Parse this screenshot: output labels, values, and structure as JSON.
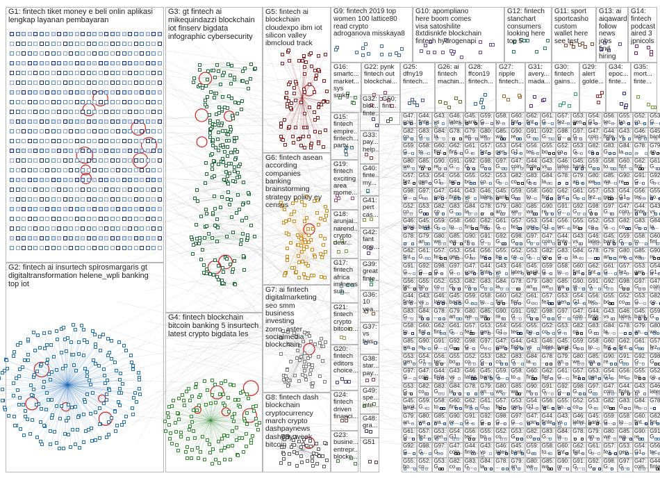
{
  "groups": [
    {
      "id": "G1",
      "text": "G1: fintech tiket money e beli onlin aplikasi\nlengkap layanan pembayaran",
      "color": "#2f3a7a"
    },
    {
      "id": "G2",
      "text": "G2: fintech ai insurtech spirosmargaris gt\ndigitaltransformation helene_wpli banking\ntop iot",
      "color": "#1f6fb5"
    },
    {
      "id": "G3",
      "text": "G3: gt fintech ai\nmikequindazzi blockchain\niot finserv bigdata\ninfographic cybersecurity",
      "color": "#1f6b3a"
    },
    {
      "id": "G4",
      "text": "G4: fintech blockchain\nbitcoin banking 5 insurtech\nlatest crypto bigdata les",
      "color": "#2e8b2e"
    },
    {
      "id": "G5",
      "text": "G5: fintech ai\nblockchain\ncloudexpo ibm iot\nsilicon valley\nibmcloud track",
      "color": "#8b1a1a"
    },
    {
      "id": "G6",
      "text": "G6: fintech asean\naccording\ncompanies\nbanking\nbrainstorming\nstrategy policy ey\ncensus",
      "color": "#d08a1a"
    },
    {
      "id": "G7",
      "text": "G7: ai fintech\ndigitalmarketing\nseo smm\nbusiness\ninvesting\nzorro_aster\nsocialmedia\nblockchain",
      "color": "#7a7a7a"
    },
    {
      "id": "G8",
      "text": "G8: fintech dash\nblockchain\ncryptocurrency\nmarch crypto\ndashpaynews\ndashpay week\nbitcoin",
      "color": "#5a5a5a"
    },
    {
      "id": "G9",
      "text": "G9: fintech 2019 top\nwomen 100 lattice80\nread crypto\nadroganova misskaya8",
      "color": "#3a6aa0"
    },
    {
      "id": "G10",
      "text": "G10: apompliano\nhere boom comes\nvisa satoshilite\n8xtdisnkfe blockchain\nfintech hydrogenapi",
      "color": "#6a4aa0"
    },
    {
      "id": "G12",
      "text": "G12: fintech\nstanchart\nconsumers\nlooking here\ntop 5",
      "color": "#2a7a6a"
    },
    {
      "id": "G11",
      "text": "G11: sport\nsportcasho\ncustom\nwallet here\nsee test",
      "color": "#8a4a2a"
    },
    {
      "id": "G13",
      "text": "G13: ai\naiqawards\nfollow\nnews jobs\nfind hiring",
      "color": "#4a4a9a"
    },
    {
      "id": "G14",
      "text": "G14:\nfintech\npodcast\naired 3\njpnicols",
      "color": "#7a2a6a"
    },
    {
      "id": "G16",
      "text": "G16:\nsmartc...\nmarket...\nsys\nsmkg...",
      "color": "#3a8a3a"
    },
    {
      "id": "G22",
      "text": "G22: pynk\nfintech out\nblockchai...",
      "color": "#a03a6a"
    },
    {
      "id": "G25",
      "text": "G25:\ndfny19\nfintech...",
      "color": "#3a5aa0"
    },
    {
      "id": "G26",
      "text": "G26: ai\nfintech\nmachin...",
      "color": "#6a6a2a"
    },
    {
      "id": "G28",
      "text": "G28:\nffcon19\nfintech...",
      "color": "#2a6aa0"
    },
    {
      "id": "G27",
      "text": "G27:\nripple\nfintech...",
      "color": "#a06a2a"
    },
    {
      "id": "G31",
      "text": "G31:\navery...\nmada...",
      "color": "#5a2aa0"
    },
    {
      "id": "G30",
      "text": "G30:\nfintech\ngains...",
      "color": "#2aa06a"
    },
    {
      "id": "G29",
      "text": "G29:\nalert\ngolde...",
      "color": "#a02a2a"
    },
    {
      "id": "G34",
      "text": "G34:\nepoc...\nfinte...",
      "color": "#2a2aa0"
    },
    {
      "id": "G35",
      "text": "G35:\nmort...\nfinte...",
      "color": "#6aa02a"
    },
    {
      "id": "G15",
      "text": "G15:\nfintech\nempire...\nfintech...\nparty...",
      "color": "#4a7a9a"
    },
    {
      "id": "G19",
      "text": "G19:\nfintech\nexciting\narea\nmome...",
      "color": "#9a4a7a"
    },
    {
      "id": "G18",
      "text": "G18:\narunjai...\nnarend...\ncrypto\ndear...",
      "color": "#7a9a4a"
    },
    {
      "id": "G17",
      "text": "G17:\nfintech\nafrica\nimfnews\nsub...",
      "color": "#4a9a9a"
    },
    {
      "id": "G21",
      "text": "G21:\nfintech\ncrypto\nbitcoin...",
      "color": "#9a9a4a"
    },
    {
      "id": "G20",
      "text": "G20:\nfintech\neditors\nchoice...",
      "color": "#4a4a7a"
    },
    {
      "id": "G24",
      "text": "G24:\nfintech\ndriven\nfinanci...",
      "color": "#7a4a4a"
    },
    {
      "id": "G23",
      "text": "G23:\nbusine...\nentrepr...\nblockc...",
      "color": "#4a7a4a"
    },
    {
      "id": "G32",
      "text": "G32:\nbloc...\nfinte...",
      "color": "#3a3a8a"
    },
    {
      "id": "G33",
      "text": "G33:\npay...\nhelp...",
      "color": "#8a3a3a"
    },
    {
      "id": "G40",
      "text": "G40:\nfinte...\nmy...",
      "color": "#3a8a8a"
    },
    {
      "id": "G41",
      "text": "G41:\npert\ncas...",
      "color": "#8a8a3a"
    },
    {
      "id": "G42",
      "text": "G42:\nfant\nopp...",
      "color": "#5a3a8a"
    },
    {
      "id": "G39",
      "text": "G39:\ngreat\nfinte...",
      "color": "#3a8a5a"
    },
    {
      "id": "G36",
      "text": "G36:\n10\nyea...",
      "color": "#8a5a3a"
    },
    {
      "id": "G37",
      "text": "G37:\nvs\nhas...",
      "color": "#3a5a8a"
    },
    {
      "id": "G38",
      "text": "G38:\nstar...\npay...",
      "color": "#8a3a5a"
    },
    {
      "id": "G49",
      "text": "G49:\nspe...\ninte...",
      "color": "#5a8a3a"
    },
    {
      "id": "G48",
      "text": "G48:\ngra...",
      "color": "#3a3a5a"
    },
    {
      "id": "G51",
      "text": "G51",
      "color": "#5a3a3a"
    },
    {
      "id": "G50",
      "text": "G50:\nfint...",
      "color": "#3a5a3a"
    }
  ],
  "small_grid_labels": [
    "G47:\ncoin...",
    "G44:\nfinte...",
    "G43:\nvs ai...",
    "G46:\nlates...",
    "G45:\nbank...",
    "G59:\nG...",
    "G58:\nto...",
    "G60:\nfint...",
    "G62:\nfint...",
    "G61:\nG...",
    "G57:\nfez...",
    "G53:\ngen...",
    "G54:\nG1...",
    "G56:\ntec...",
    "G55:\nbo...",
    "G52:\nco...",
    "G53:\nG...",
    "G82:\nco...",
    "G83:\nG...",
    "G84:\nla...",
    "G78:\n...",
    "G79:\nan...",
    "G80:\nwe...",
    "G85:\nwa...",
    "G90:\nre...",
    "G91:\nG...",
    "G92:\nG...",
    "G98:\nG...",
    "G97:\nG..."
  ]
}
